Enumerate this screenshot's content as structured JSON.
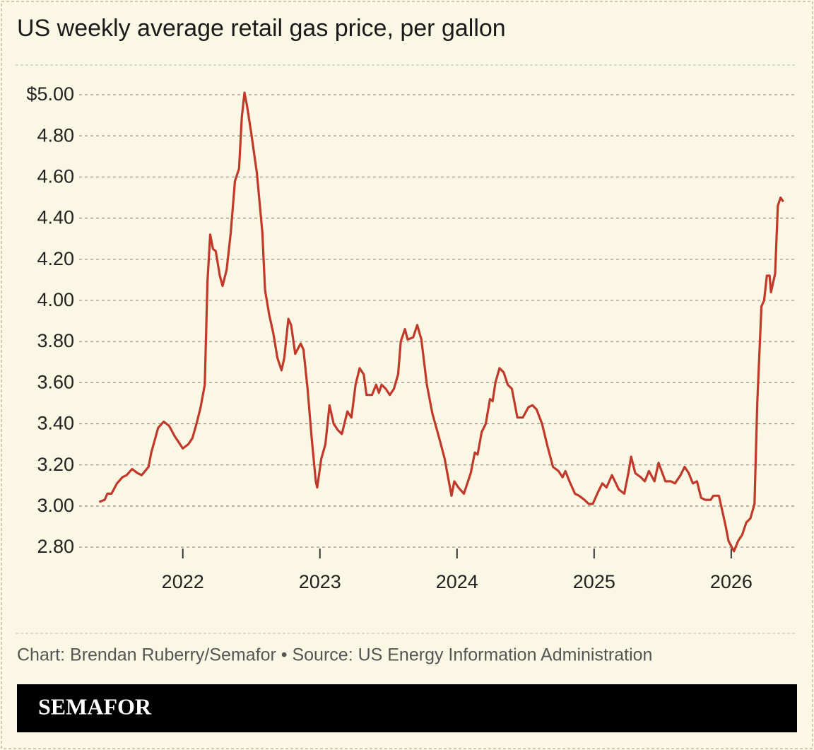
{
  "chart_data": {
    "type": "line",
    "title": "US weekly average retail gas price, per gallon",
    "source": "Chart: Brendan Ruberry/Semafor • Source: US Energy Information Administration",
    "x": [
      2021.39,
      2021.43,
      2021.45,
      2021.48,
      2021.52,
      2021.56,
      2021.59,
      2021.63,
      2021.67,
      2021.7,
      2021.75,
      2021.77,
      2021.82,
      2021.86,
      2021.9,
      2021.94,
      2022.0,
      2022.04,
      2022.07,
      2022.1,
      2022.13,
      2022.16,
      2022.18,
      2022.2,
      2022.22,
      2022.24,
      2022.27,
      2022.29,
      2022.32,
      2022.35,
      2022.38,
      2022.41,
      2022.43,
      2022.45,
      2022.47,
      2022.5,
      2022.54,
      2022.58,
      2022.6,
      2022.63,
      2022.66,
      2022.69,
      2022.72,
      2022.74,
      2022.77,
      2022.79,
      2022.82,
      2022.86,
      2022.88,
      2022.91,
      2022.94,
      2022.97,
      2022.98,
      2023.01,
      2023.04,
      2023.07,
      2023.1,
      2023.13,
      2023.16,
      2023.2,
      2023.23,
      2023.26,
      2023.29,
      2023.32,
      2023.34,
      2023.38,
      2023.41,
      2023.43,
      2023.45,
      2023.48,
      2023.51,
      2023.54,
      2023.57,
      2023.59,
      2023.62,
      2023.64,
      2023.68,
      2023.71,
      2023.74,
      2023.78,
      2023.82,
      2023.87,
      2023.91,
      2023.94,
      2023.96,
      2023.98,
      2024.01,
      2024.05,
      2024.07,
      2024.1,
      2024.13,
      2024.15,
      2024.18,
      2024.21,
      2024.24,
      2024.26,
      2024.28,
      2024.31,
      2024.34,
      2024.37,
      2024.4,
      2024.44,
      2024.48,
      2024.52,
      2024.55,
      2024.58,
      2024.62,
      2024.66,
      2024.7,
      2024.74,
      2024.77,
      2024.79,
      2024.82,
      2024.86,
      2024.89,
      2024.93,
      2024.96,
      2024.99,
      2025.03,
      2025.06,
      2025.09,
      2025.13,
      2025.18,
      2025.22,
      2025.25,
      2025.27,
      2025.3,
      2025.34,
      2025.37,
      2025.4,
      2025.44,
      2025.47,
      2025.52,
      2025.56,
      2025.59,
      2025.63,
      2025.66,
      2025.69,
      2025.72,
      2025.75,
      2025.78,
      2025.81,
      2025.85,
      2025.87,
      2025.91,
      2025.93,
      2025.96,
      2025.98,
      2026.02,
      2026.05,
      2026.08,
      2026.11,
      2026.14,
      2026.17,
      2026.19,
      2026.22,
      2026.24,
      2026.26,
      2026.28,
      2026.29,
      2026.32,
      2026.34,
      2026.36,
      2026.38
    ],
    "series": [
      {
        "color": "#c0392b",
        "values": [
          3.02,
          3.03,
          3.06,
          3.06,
          3.11,
          3.14,
          3.15,
          3.18,
          3.16,
          3.15,
          3.19,
          3.26,
          3.38,
          3.41,
          3.39,
          3.34,
          3.28,
          3.3,
          3.33,
          3.4,
          3.48,
          3.59,
          4.09,
          4.32,
          4.25,
          4.24,
          4.12,
          4.07,
          4.15,
          4.33,
          4.58,
          4.64,
          4.89,
          5.01,
          4.94,
          4.81,
          4.62,
          4.33,
          4.05,
          3.93,
          3.84,
          3.72,
          3.66,
          3.72,
          3.91,
          3.88,
          3.74,
          3.79,
          3.76,
          3.57,
          3.33,
          3.12,
          3.09,
          3.23,
          3.3,
          3.49,
          3.4,
          3.37,
          3.35,
          3.46,
          3.43,
          3.59,
          3.67,
          3.64,
          3.54,
          3.54,
          3.59,
          3.55,
          3.59,
          3.57,
          3.54,
          3.57,
          3.64,
          3.8,
          3.86,
          3.81,
          3.82,
          3.88,
          3.81,
          3.59,
          3.45,
          3.33,
          3.23,
          3.12,
          3.05,
          3.12,
          3.09,
          3.06,
          3.1,
          3.16,
          3.26,
          3.25,
          3.36,
          3.4,
          3.52,
          3.51,
          3.6,
          3.67,
          3.65,
          3.59,
          3.57,
          3.43,
          3.43,
          3.48,
          3.49,
          3.47,
          3.4,
          3.29,
          3.19,
          3.17,
          3.14,
          3.17,
          3.12,
          3.06,
          3.05,
          3.03,
          3.01,
          3.01,
          3.07,
          3.11,
          3.09,
          3.15,
          3.08,
          3.06,
          3.16,
          3.24,
          3.16,
          3.14,
          3.12,
          3.17,
          3.12,
          3.21,
          3.12,
          3.12,
          3.11,
          3.15,
          3.19,
          3.16,
          3.11,
          3.12,
          3.04,
          3.03,
          3.03,
          3.05,
          3.05,
          2.99,
          2.9,
          2.83,
          2.78,
          2.83,
          2.86,
          2.92,
          2.94,
          3.01,
          3.5,
          3.97,
          4.0,
          4.12,
          4.12,
          4.04,
          4.13,
          4.46,
          4.5,
          4.48
        ]
      }
    ],
    "xlim": [
      2020.78,
      2026.48
    ],
    "xticks": [
      2022,
      2023,
      2024,
      2025,
      2026
    ],
    "ylim": [
      2.8,
      5.0
    ],
    "yticks": [
      {
        "value": 2.8,
        "label": "2.80"
      },
      {
        "value": 3.0,
        "label": "3.00"
      },
      {
        "value": 3.2,
        "label": "3.20"
      },
      {
        "value": 3.4,
        "label": "3.40"
      },
      {
        "value": 3.6,
        "label": "3.60"
      },
      {
        "value": 3.8,
        "label": "3.80"
      },
      {
        "value": 4.0,
        "label": "4.00"
      },
      {
        "value": 4.2,
        "label": "4.20"
      },
      {
        "value": 4.4,
        "label": "4.40"
      },
      {
        "value": 4.6,
        "label": "4.60"
      },
      {
        "value": 4.8,
        "label": "4.80"
      },
      {
        "value": 5.0,
        "label": "$5.00"
      }
    ],
    "grid": true
  },
  "footer": {
    "logo": "SEMAFOR"
  }
}
